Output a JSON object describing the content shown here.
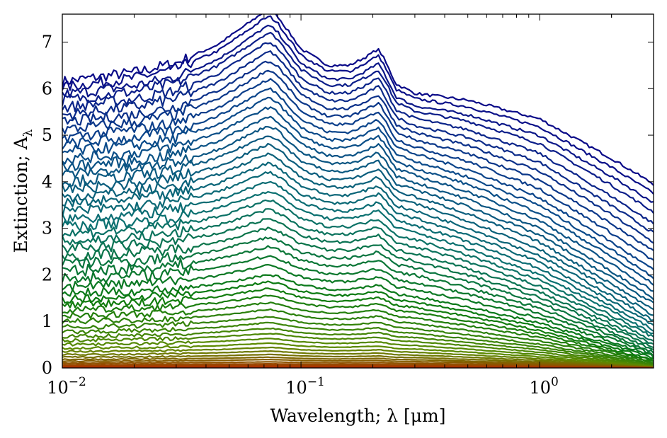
{
  "chart_data": {
    "type": "line",
    "xlabel": "Wavelength; λ [μm]",
    "ylabel": "Extinction; A",
    "ylabel_sub": "λ",
    "x_scale": "log",
    "xlim": [
      0.01,
      3.0
    ],
    "ylim": [
      0,
      7.6
    ],
    "grid": false,
    "legend": "none",
    "x_ticks": [
      {
        "value": 0.01,
        "base": "10",
        "exp": "−2"
      },
      {
        "value": 0.1,
        "base": "10",
        "exp": "−1"
      },
      {
        "value": 1,
        "base": "10",
        "exp": "0"
      }
    ],
    "y_ticks": [
      {
        "value": 0,
        "label": "0"
      },
      {
        "value": 1,
        "label": "1"
      },
      {
        "value": 2,
        "label": "2"
      },
      {
        "value": 3,
        "label": "3"
      },
      {
        "value": 4,
        "label": "4"
      },
      {
        "value": 5,
        "label": "5"
      },
      {
        "value": 6,
        "label": "6"
      },
      {
        "value": 7,
        "label": "7"
      }
    ],
    "colors": {
      "lowest_curve": "#b03000",
      "low_curves": "#5c8a00",
      "mid_curves": "#0a7a10",
      "upper_mid_curves": "#0a7070",
      "high_curves": "#0a4a8a",
      "top_curve": "#0a0a88"
    },
    "template_curve": {
      "x": [
        0.01,
        0.02,
        0.03,
        0.045,
        0.06,
        0.07,
        0.074,
        0.08,
        0.1,
        0.13,
        0.16,
        0.19,
        0.21,
        0.22,
        0.25,
        0.3,
        0.5,
        1.0,
        2.0,
        3.0
      ],
      "y": [
        6.15,
        6.35,
        6.55,
        6.95,
        7.4,
        7.65,
        7.7,
        7.55,
        6.85,
        6.5,
        6.5,
        6.7,
        6.85,
        6.7,
        6.1,
        5.9,
        5.75,
        5.35,
        4.5,
        3.95
      ]
    },
    "series": [
      {
        "peak": 7.7,
        "end": 3.95
      },
      {
        "peak": 7.55,
        "end": 3.75
      },
      {
        "peak": 7.35,
        "end": 3.55
      },
      {
        "peak": 7.2,
        "end": 3.35
      },
      {
        "peak": 7.0,
        "end": 3.1
      },
      {
        "peak": 6.8,
        "end": 2.9
      },
      {
        "peak": 6.6,
        "end": 2.7
      },
      {
        "peak": 6.4,
        "end": 2.5
      },
      {
        "peak": 6.2,
        "end": 2.3
      },
      {
        "peak": 6.0,
        "end": 2.1
      },
      {
        "peak": 5.8,
        "end": 1.95
      },
      {
        "peak": 5.6,
        "end": 1.8
      },
      {
        "peak": 5.4,
        "end": 1.65
      },
      {
        "peak": 5.2,
        "end": 1.5
      },
      {
        "peak": 5.0,
        "end": 1.38
      },
      {
        "peak": 4.8,
        "end": 1.25
      },
      {
        "peak": 4.6,
        "end": 1.13
      },
      {
        "peak": 4.4,
        "end": 1.02
      },
      {
        "peak": 4.2,
        "end": 0.92
      },
      {
        "peak": 4.0,
        "end": 0.82
      },
      {
        "peak": 3.8,
        "end": 0.74
      },
      {
        "peak": 3.6,
        "end": 0.66
      },
      {
        "peak": 3.4,
        "end": 0.58
      },
      {
        "peak": 3.2,
        "end": 0.51
      },
      {
        "peak": 3.0,
        "end": 0.45
      },
      {
        "peak": 2.8,
        "end": 0.39
      },
      {
        "peak": 2.6,
        "end": 0.34
      },
      {
        "peak": 2.4,
        "end": 0.29
      },
      {
        "peak": 2.2,
        "end": 0.25
      },
      {
        "peak": 2.0,
        "end": 0.21
      },
      {
        "peak": 1.85,
        "end": 0.18
      },
      {
        "peak": 1.7,
        "end": 0.15
      },
      {
        "peak": 1.55,
        "end": 0.13
      },
      {
        "peak": 1.4,
        "end": 0.11
      },
      {
        "peak": 1.25,
        "end": 0.09
      },
      {
        "peak": 1.1,
        "end": 0.075
      },
      {
        "peak": 0.97,
        "end": 0.06
      },
      {
        "peak": 0.85,
        "end": 0.05
      },
      {
        "peak": 0.74,
        "end": 0.04
      },
      {
        "peak": 0.63,
        "end": 0.03
      },
      {
        "peak": 0.53,
        "end": 0.025
      },
      {
        "peak": 0.44,
        "end": 0.02
      },
      {
        "peak": 0.36,
        "end": 0.015
      },
      {
        "peak": 0.29,
        "end": 0.012
      },
      {
        "peak": 0.23,
        "end": 0.009
      },
      {
        "peak": 0.18,
        "end": 0.007
      },
      {
        "peak": 0.13,
        "end": 0.005
      },
      {
        "peak": 0.09,
        "end": 0.003
      },
      {
        "peak": 0.06,
        "end": 0.002
      },
      {
        "peak": 0.035,
        "end": 0.001
      },
      {
        "peak": 0.015,
        "end": 0.0005
      }
    ]
  }
}
